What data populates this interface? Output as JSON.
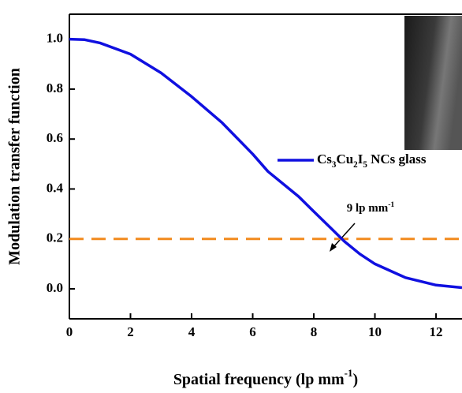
{
  "chart_data": {
    "type": "line",
    "x_label": "Spatial frequency (lp mm-1)",
    "y_label": "Modulation transfer function",
    "xlim": [
      0,
      12.85
    ],
    "ylim": [
      -0.12,
      1.1
    ],
    "xticks": [
      0,
      2,
      4,
      6,
      8,
      10,
      12
    ],
    "yticks": [
      {
        "value": 0,
        "label": "0.0"
      },
      0.2,
      0.4,
      0.6,
      0.8,
      {
        "value": 1,
        "label": "1.0"
      }
    ],
    "x": [
      0,
      0.5,
      1,
      2,
      3,
      4,
      5,
      6,
      6.5,
      7,
      7.5,
      8,
      8.5,
      9,
      9.5,
      10,
      11,
      12,
      12.85
    ],
    "series": [
      {
        "name": "Cs3Cu2I5 NCs glass",
        "color": "#1010e0",
        "values": [
          1.0,
          0.998,
          0.985,
          0.94,
          0.865,
          0.77,
          0.665,
          0.54,
          0.47,
          0.42,
          0.37,
          0.31,
          0.25,
          0.19,
          0.14,
          0.1,
          0.045,
          0.015,
          0.005
        ]
      }
    ],
    "reference_line": {
      "value": 0.2,
      "color": "#f28a1e"
    },
    "annotation": "9 lp mm-1",
    "legend": "upper right"
  }
}
